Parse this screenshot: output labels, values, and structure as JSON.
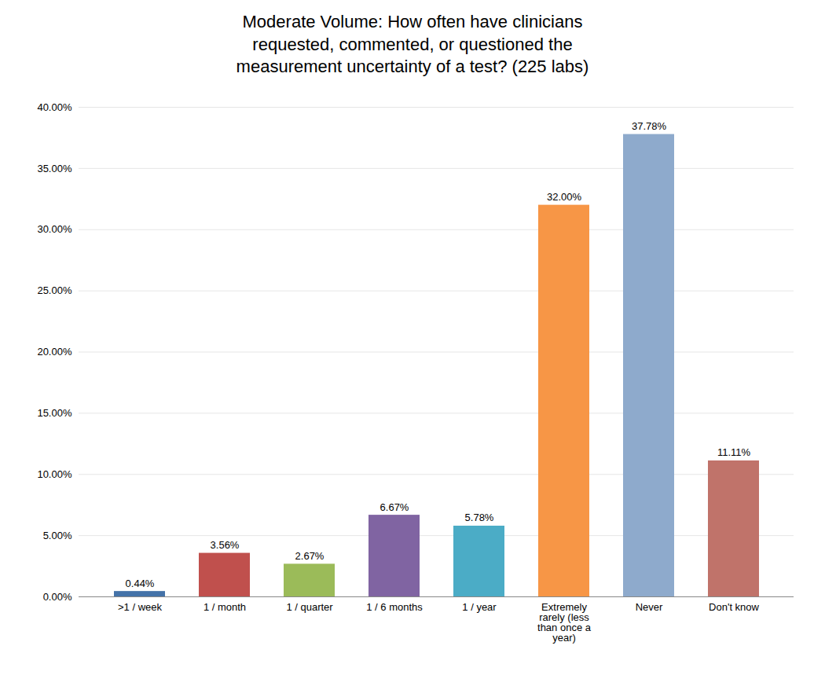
{
  "chart_data": {
    "type": "bar",
    "title": "Moderate Volume: How often have clinicians\nrequested, commented, or questioned the\nmeasurement uncertainty of a test? (225 labs)",
    "categories": [
      ">1 / week",
      "1 / month",
      "1 / quarter",
      "1 / 6 months",
      "1 / year",
      "Extremely\nrarely (less\nthan once a\nyear)",
      "Never",
      "Don't know"
    ],
    "values": [
      0.0044,
      0.0356,
      0.0267,
      0.0667,
      0.0578,
      0.32,
      0.3778,
      0.1111
    ],
    "value_labels": [
      "0.44%",
      "3.56%",
      "2.67%",
      "6.67%",
      "5.78%",
      "32.00%",
      "37.78%",
      "11.11%"
    ],
    "colors": [
      "#4472a8",
      "#c0504d",
      "#9bbb59",
      "#8064a2",
      "#4bacc6",
      "#f79646",
      "#8eaacc",
      "#c0736a"
    ],
    "data_labels": true,
    "ylim": [
      0,
      0.4
    ],
    "yticks": [
      {
        "value": 0.0,
        "label": "0.00%"
      },
      {
        "value": 0.05,
        "label": "5.00%"
      },
      {
        "value": 0.1,
        "label": "10.00%"
      },
      {
        "value": 0.15,
        "label": "15.00%"
      },
      {
        "value": 0.2,
        "label": "20.00%"
      },
      {
        "value": 0.25,
        "label": "25.00%"
      },
      {
        "value": 0.3,
        "label": "30.00%"
      },
      {
        "value": 0.35,
        "label": "35.00%"
      },
      {
        "value": 0.4,
        "label": "40.00%"
      }
    ],
    "grid": true
  }
}
